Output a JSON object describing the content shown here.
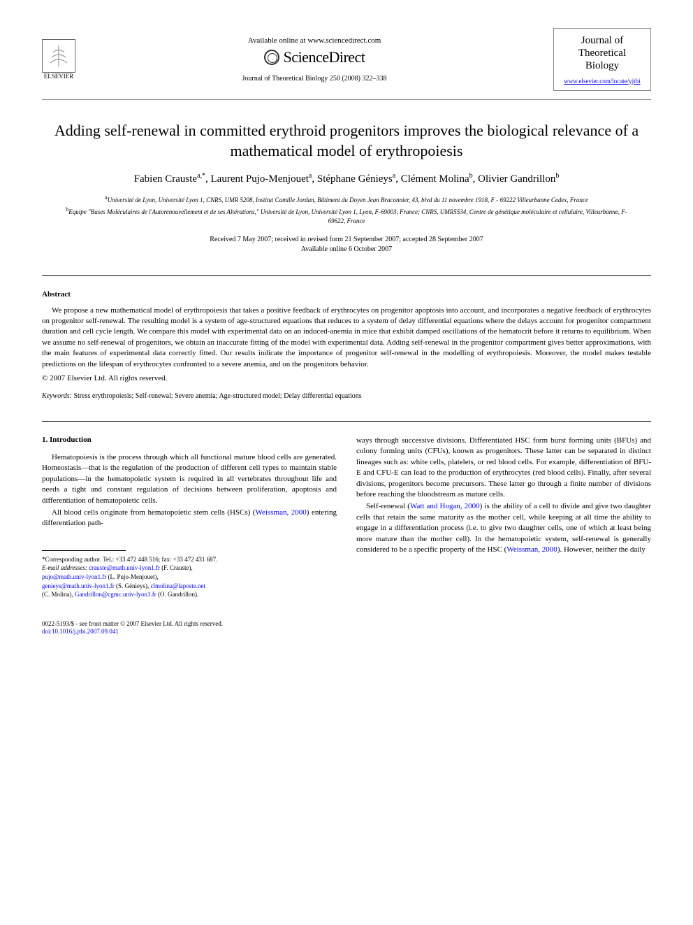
{
  "header": {
    "available_text": "Available online at www.sciencedirect.com",
    "sciencedirect": "ScienceDirect",
    "journal_ref": "Journal of Theoretical Biology 250 (2008) 322–338",
    "publisher": "ELSEVIER",
    "journal_name_l1": "Journal of",
    "journal_name_l2": "Theoretical",
    "journal_name_l3": "Biology",
    "journal_link": "www.elsevier.com/locate/yjtbi"
  },
  "article": {
    "title": "Adding self-renewal in committed erythroid progenitors improves the biological relevance of a mathematical model of erythropoiesis",
    "authors_html": "Fabien Crauste<sup>a,*</sup>, Laurent Pujo-Menjouet<sup>a</sup>, Stéphane Génieys<sup>a</sup>, Clément Molina<sup>b</sup>, Olivier Gandrillon<sup>b</sup>",
    "affil_a": "Université de Lyon, Université Lyon 1, CNRS, UMR 5208, Institut Camille Jordan, Bâtiment du Doyen Jean Braconnier, 43, blvd du 11 novembre 1918, F - 69222 Villeurbanne Cedex, France",
    "affil_b": "Equipe \"Bases Moléculaires de l'Autorenouvellement et de ses Altérations,\" Université de Lyon, Université Lyon 1, Lyon, F-69003, France; CNRS, UMR5534, Centre de génétique moléculaire et cellulaire, Villeurbanne, F-69622, France",
    "dates_l1": "Received 7 May 2007; received in revised form 21 September 2007; accepted 28 September 2007",
    "dates_l2": "Available online 6 October 2007"
  },
  "abstract": {
    "heading": "Abstract",
    "text": "We propose a new mathematical model of erythropoiesis that takes a positive feedback of erythrocytes on progenitor apoptosis into account, and incorporates a negative feedback of erythrocytes on progenitor self-renewal. The resulting model is a system of age-structured equations that reduces to a system of delay differential equations where the delays account for progenitor compartment duration and cell cycle length. We compare this model with experimental data on an induced-anemia in mice that exhibit damped oscillations of the hematocrit before it returns to equilibrium. When we assume no self-renewal of progenitors, we obtain an inaccurate fitting of the model with experimental data. Adding self-renewal in the progenitor compartment gives better approximations, with the main features of experimental data correctly fitted. Our results indicate the importance of progenitor self-renewal in the modelling of erythropoiesis. Moreover, the model makes testable predictions on the lifespan of erythrocytes confronted to a severe anemia, and on the progenitors behavior.",
    "copyright": "© 2007 Elsevier Ltd. All rights reserved."
  },
  "keywords": {
    "label": "Keywords:",
    "text": "Stress erythropoiesis; Self-renewal; Severe anemia; Age-structured model; Delay differential equations"
  },
  "body": {
    "section_num": "1.",
    "section_title": "Introduction",
    "col1_p1": "Hematopoiesis is the process through which all functional mature blood cells are generated. Homeostasis—that is the regulation of the production of different cell types to maintain stable populations—in the hematopoietic system is required in all vertebrates throughout life and needs a tight and constant regulation of decisions between proliferation, apoptosis and differentiation of hematopoietic cells.",
    "col1_p2_pre": "All blood cells originate from hematopoietic stem cells (HSCs) (",
    "col1_p2_ref": "Weissman, 2000",
    "col1_p2_post": ") entering differentiation path-",
    "col2_p1": "ways through successive divisions. Differentiated HSC form burst forming units (BFUs) and colony forming units (CFUs), known as progenitors. These latter can be separated in distinct lineages such as: white cells, platelets, or red blood cells. For example, differentiation of BFU-E and CFU-E can lead to the production of erythrocytes (red blood cells). Finally, after several divisions, progenitors become precursors. These latter go through a finite number of divisions before reaching the bloodstream as mature cells.",
    "col2_p2_pre": "Self-renewal (",
    "col2_p2_ref1": "Watt and Hogan, 2000",
    "col2_p2_mid": ") is the ability of a cell to divide and give two daughter cells that retain the same maturity as the mother cell, while keeping at all time the ability to engage in a differentiation process (i.e. to give two daughter cells, one of which at least being more mature than the mother cell). In the hematopoietic system, self-renewal is generally considered to be a specific property of the HSC (",
    "col2_p2_ref2": "Weissman, 2000",
    "col2_p2_post": "). However, neither the daily"
  },
  "footnote": {
    "corr": "*Corresponding author. Tel.: +33 472 448 516; fax: +33 472 431 687.",
    "email_label": "E-mail addresses:",
    "e1": "crauste@math.univ-lyon1.fr",
    "n1": "(F. Crauste),",
    "e2": "pujo@math.univ-lyon1.fr",
    "n2": "(L. Pujo-Menjouet),",
    "e3": "genieys@math.univ-lyon1.fr",
    "n3": "(S. Génieys),",
    "e4": "clmolina@laposte.net",
    "n4": "(C. Molina),",
    "e5": "Gandrillon@cgmc.univ-lyon1.fr",
    "n5": "(O. Gandrillon)."
  },
  "footer": {
    "line1": "0022-5193/$ - see front matter © 2007 Elsevier Ltd. All rights reserved.",
    "doi": "doi:10.1016/j.jtbi.2007.09.041"
  },
  "colors": {
    "text": "#000000",
    "link": "#0000ee",
    "border": "#888888",
    "background": "#ffffff"
  },
  "typography": {
    "title_fontsize": 22,
    "authors_fontsize": 15,
    "body_fontsize": 11,
    "footnote_fontsize": 9,
    "font_family": "Georgia, Times New Roman, serif"
  }
}
